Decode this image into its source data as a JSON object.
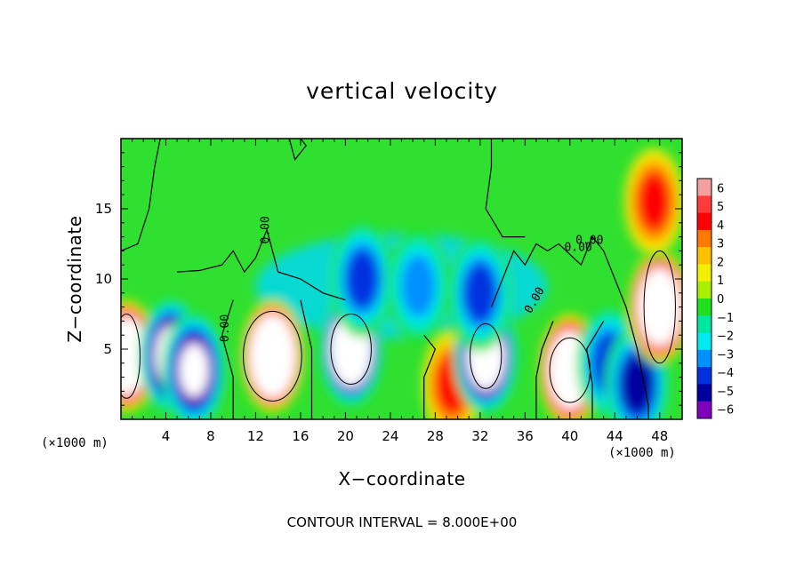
{
  "chart_data": {
    "type": "heatmap",
    "title": "vertical velocity",
    "xlabel": "X−coordinate",
    "ylabel": "Z−coordinate",
    "x_unit_label": "(×1000 m)",
    "xlim": [
      0,
      50
    ],
    "ylim": [
      0,
      20
    ],
    "x_ticks": [
      4,
      8,
      12,
      16,
      20,
      24,
      28,
      32,
      36,
      40,
      44,
      48
    ],
    "y_ticks": [
      5,
      10,
      15
    ],
    "colorbar": {
      "ticks": [
        6,
        5,
        4,
        3,
        2,
        1,
        0,
        -1,
        -2,
        -3,
        -4,
        -5,
        -6
      ],
      "tick_labels": [
        "6",
        "5",
        "4",
        "3",
        "2",
        "1",
        "0",
        "−1",
        "−2",
        "−3",
        "−4",
        "−5",
        "−6"
      ],
      "range": [
        -6,
        6
      ],
      "colors": [
        "#f4a0a0",
        "#ff3b3b",
        "#ff0000",
        "#ff7a00",
        "#ffc000",
        "#f0f000",
        "#a8f000",
        "#20e020",
        "#00e8a0",
        "#00e8f0",
        "#0090ff",
        "#0030e0",
        "#0000a0",
        "#8000c0"
      ]
    },
    "contour_labels": [
      "0.00",
      "0.00",
      "0.00",
      "0.00",
      "0.00"
    ],
    "contour_interval": "CONTOUR INTERVAL = 8.000E+00",
    "features": [
      {
        "x": 0.5,
        "z": 4.5,
        "w": 12
      },
      {
        "x": 4.5,
        "z": 4.5,
        "w": -8
      },
      {
        "x": 6.5,
        "z": 3.5,
        "w": -7
      },
      {
        "x": 13.5,
        "z": 4.5,
        "w": 13
      },
      {
        "x": 20.5,
        "z": 5.0,
        "w": -10
      },
      {
        "x": 21.5,
        "z": 10.0,
        "w": -4
      },
      {
        "x": 26.5,
        "z": 9.5,
        "w": -3
      },
      {
        "x": 29.5,
        "z": 2.5,
        "w": 4
      },
      {
        "x": 32.5,
        "z": 4.5,
        "w": -9
      },
      {
        "x": 32.0,
        "z": 9.0,
        "w": -4
      },
      {
        "x": 40.0,
        "z": 3.5,
        "w": 11
      },
      {
        "x": 43.5,
        "z": 4.0,
        "w": -4
      },
      {
        "x": 46.0,
        "z": 2.5,
        "w": -5
      },
      {
        "x": 48.0,
        "z": 8.0,
        "w": 12
      },
      {
        "x": 47.5,
        "z": 15.5,
        "w": 4
      }
    ]
  },
  "footer": "CONTOUR INTERVAL = 8.000E+00"
}
